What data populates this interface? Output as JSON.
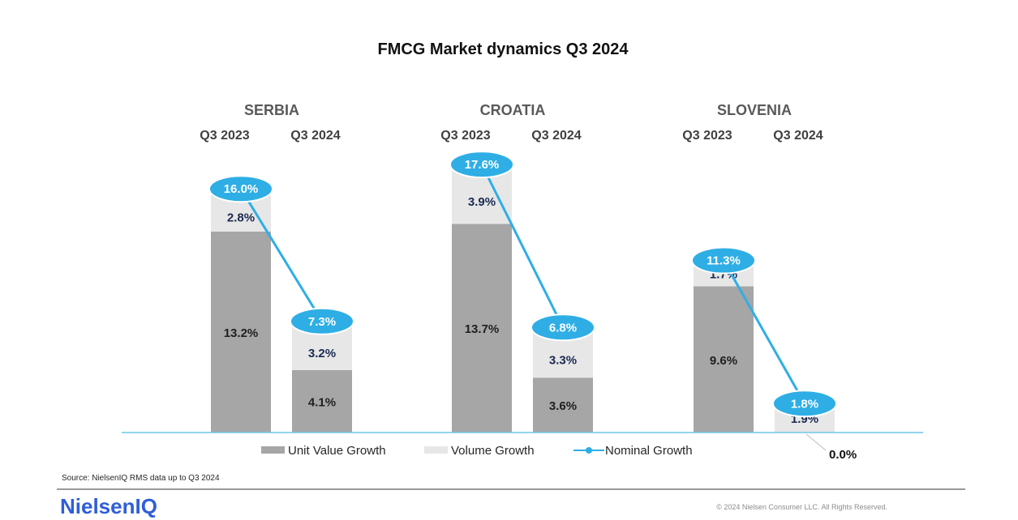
{
  "title": "FMCG Market dynamics Q3 2024",
  "colors": {
    "unit_value": "#a6a6a6",
    "volume": "#e7e7e7",
    "nominal": "#2eaee5",
    "axis": "#6ec6ea",
    "logo": "#2f5ed8"
  },
  "chart_data": {
    "type": "bar",
    "stacked": true,
    "groups": [
      {
        "name": "SERBIA",
        "categories": [
          "Q3 2023",
          "Q3 2024"
        ]
      },
      {
        "name": "CROATIA",
        "categories": [
          "Q3 2023",
          "Q3 2024"
        ]
      },
      {
        "name": "SLOVENIA",
        "categories": [
          "Q3 2023",
          "Q3 2024"
        ]
      }
    ],
    "series": [
      {
        "name": "Unit Value Growth",
        "kind": "bar",
        "values": [
          [
            13.2,
            4.1
          ],
          [
            13.7,
            3.6
          ],
          [
            9.6,
            0.0
          ]
        ],
        "labels": [
          [
            "13.2%",
            "4.1%"
          ],
          [
            "13.7%",
            "3.6%"
          ],
          [
            "9.6%",
            "0.0%"
          ]
        ]
      },
      {
        "name": "Volume Growth",
        "kind": "bar",
        "values": [
          [
            2.8,
            3.2
          ],
          [
            3.9,
            3.3
          ],
          [
            1.7,
            1.9
          ]
        ],
        "labels": [
          [
            "2.8%",
            "3.2%"
          ],
          [
            "3.9%",
            "3.3%"
          ],
          [
            "1.7%",
            "1.9%"
          ]
        ]
      },
      {
        "name": "Nominal Growth",
        "kind": "line",
        "values": [
          [
            16.0,
            7.3
          ],
          [
            17.6,
            6.8
          ],
          [
            11.3,
            1.8
          ]
        ],
        "labels": [
          [
            "16.0%",
            "7.3%"
          ],
          [
            "17.6%",
            "6.8%"
          ],
          [
            "11.3%",
            "1.8%"
          ]
        ]
      }
    ],
    "legend": [
      "Unit Value Growth",
      "Volume Growth",
      "Nominal Growth"
    ],
    "legend_position": "bottom"
  },
  "footer": {
    "source": "Source: NielsenIQ RMS data up to Q3 2024",
    "logo": "NielsenIQ",
    "copyright": "© 2024 Nielsen Consumer LLC. All Rights Reserved."
  }
}
